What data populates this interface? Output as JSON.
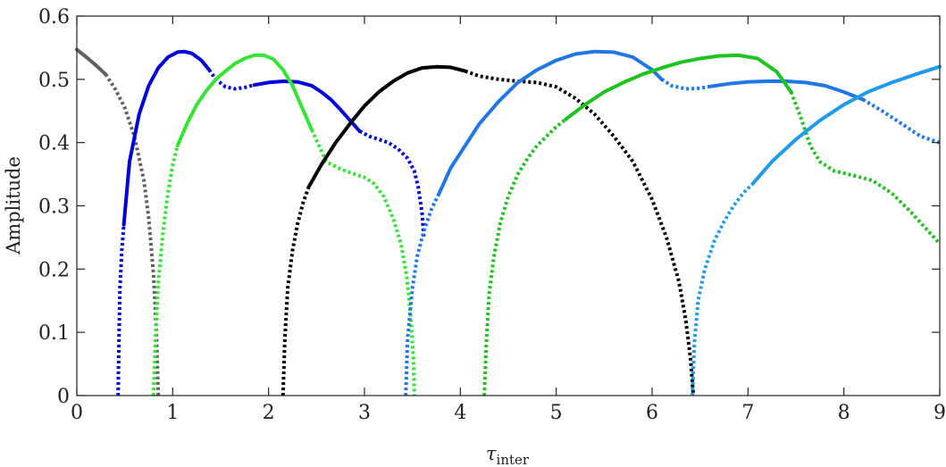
{
  "chart_data": {
    "type": "line",
    "xlabel": "τ",
    "xlabel_subscript": "inter",
    "ylabel": "Amplitude",
    "xlim": [
      0,
      9
    ],
    "ylim": [
      0,
      0.6
    ],
    "x_ticks": [
      0,
      1,
      2,
      3,
      4,
      5,
      6,
      7,
      8,
      9
    ],
    "y_ticks": [
      0,
      0.1,
      0.2,
      0.3,
      0.4,
      0.5,
      0.6
    ],
    "x_tick_labels": [
      "0",
      "1",
      "2",
      "3",
      "4",
      "5",
      "6",
      "7",
      "8",
      "9"
    ],
    "y_tick_labels": [
      "0",
      "0.1",
      "0.2",
      "0.3",
      "0.4",
      "0.5",
      "0.6"
    ],
    "grid": false,
    "legend": "none",
    "series": [
      {
        "color": "#606060",
        "segments": [
          {
            "style": "solid",
            "x": [
              0,
              0.1,
              0.2,
              0.3
            ],
            "y": [
              0.547,
              0.535,
              0.522,
              0.508
            ]
          },
          {
            "style": "dotted",
            "x": [
              0.3,
              0.4,
              0.5,
              0.6,
              0.7,
              0.75,
              0.8,
              0.83,
              0.85
            ],
            "y": [
              0.508,
              0.485,
              0.455,
              0.41,
              0.34,
              0.28,
              0.19,
              0.1,
              0.0
            ]
          }
        ]
      },
      {
        "color": "#0000dd",
        "segments": [
          {
            "style": "dotted",
            "x": [
              0.43,
              0.44,
              0.45,
              0.47,
              0.49
            ],
            "y": [
              0.0,
              0.09,
              0.17,
              0.23,
              0.27
            ]
          },
          {
            "style": "solid",
            "x": [
              0.49,
              0.55,
              0.65,
              0.75,
              0.85,
              0.95,
              1.05,
              1.12,
              1.2,
              1.3,
              1.38
            ],
            "y": [
              0.27,
              0.37,
              0.445,
              0.49,
              0.518,
              0.535,
              0.543,
              0.544,
              0.541,
              0.53,
              0.515
            ]
          },
          {
            "style": "dotted",
            "x": [
              1.38,
              1.45,
              1.55,
              1.65,
              1.75,
              1.85
            ],
            "y": [
              0.515,
              0.5,
              0.488,
              0.485,
              0.487,
              0.491
            ]
          },
          {
            "style": "solid",
            "x": [
              1.85,
              2.0,
              2.15,
              2.3,
              2.45,
              2.55,
              2.65,
              2.75,
              2.85,
              2.95
            ],
            "y": [
              0.491,
              0.495,
              0.497,
              0.496,
              0.49,
              0.48,
              0.468,
              0.452,
              0.435,
              0.418
            ]
          },
          {
            "style": "dotted",
            "x": [
              2.95,
              3.05,
              3.15,
              3.25,
              3.35,
              3.45,
              3.52,
              3.56,
              3.6,
              3.62
            ],
            "y": [
              0.418,
              0.41,
              0.405,
              0.4,
              0.39,
              0.375,
              0.355,
              0.33,
              0.29,
              0.25
            ]
          }
        ]
      },
      {
        "color": "#33e633",
        "segments": [
          {
            "style": "dotted",
            "x": [
              0.8,
              0.82,
              0.85,
              0.9,
              0.95,
              1.0,
              1.05
            ],
            "y": [
              0.0,
              0.09,
              0.18,
              0.26,
              0.32,
              0.365,
              0.395
            ]
          },
          {
            "style": "solid",
            "x": [
              1.05,
              1.15,
              1.25,
              1.35,
              1.45,
              1.55,
              1.65,
              1.75,
              1.85,
              1.95,
              2.05,
              2.15,
              2.25,
              2.35,
              2.45
            ],
            "y": [
              0.395,
              0.43,
              0.46,
              0.482,
              0.5,
              0.513,
              0.525,
              0.533,
              0.538,
              0.538,
              0.532,
              0.515,
              0.49,
              0.455,
              0.42
            ]
          },
          {
            "style": "dotted",
            "x": [
              2.45,
              2.6,
              2.75,
              2.9,
              3.0,
              3.1,
              3.2,
              3.3,
              3.38,
              3.44,
              3.48,
              3.51,
              3.52
            ],
            "y": [
              0.42,
              0.37,
              0.358,
              0.35,
              0.345,
              0.335,
              0.315,
              0.28,
              0.24,
              0.19,
              0.13,
              0.06,
              0.0
            ]
          }
        ]
      },
      {
        "color": "#000000",
        "segments": [
          {
            "style": "dotted",
            "x": [
              2.15,
              2.17,
              2.2,
              2.25,
              2.3,
              2.36,
              2.42
            ],
            "y": [
              0.0,
              0.09,
              0.17,
              0.23,
              0.27,
              0.305,
              0.33
            ]
          },
          {
            "style": "solid",
            "x": [
              2.42,
              2.55,
              2.7,
              2.85,
              3.0,
              3.15,
              3.3,
              3.45,
              3.6,
              3.75,
              3.9,
              4.05
            ],
            "y": [
              0.33,
              0.365,
              0.4,
              0.43,
              0.458,
              0.48,
              0.497,
              0.51,
              0.518,
              0.52,
              0.519,
              0.513
            ]
          },
          {
            "style": "dotted",
            "x": [
              4.05,
              4.2,
              4.4,
              4.6,
              4.8,
              5.0,
              5.2,
              5.4,
              5.6,
              5.8,
              6.0,
              6.15,
              6.28,
              6.35,
              6.4,
              6.43
            ],
            "y": [
              0.513,
              0.505,
              0.5,
              0.497,
              0.495,
              0.488,
              0.47,
              0.445,
              0.41,
              0.37,
              0.31,
              0.25,
              0.18,
              0.12,
              0.06,
              0.0
            ]
          }
        ]
      },
      {
        "color": "#1f77e6",
        "segments": [
          {
            "style": "dotted",
            "x": [
              3.43,
              3.45,
              3.5,
              3.55,
              3.62,
              3.7,
              3.78
            ],
            "y": [
              0.0,
              0.09,
              0.17,
              0.22,
              0.26,
              0.295,
              0.32
            ]
          },
          {
            "style": "solid",
            "x": [
              3.78,
              3.9,
              4.05,
              4.2,
              4.4,
              4.6,
              4.8,
              5.0,
              5.2,
              5.4,
              5.6,
              5.8,
              6.0,
              6.1
            ],
            "y": [
              0.32,
              0.36,
              0.395,
              0.43,
              0.465,
              0.495,
              0.515,
              0.53,
              0.54,
              0.544,
              0.543,
              0.535,
              0.515,
              0.5
            ]
          },
          {
            "style": "dotted",
            "x": [
              6.1,
              6.2,
              6.35,
              6.5,
              6.62
            ],
            "y": [
              0.5,
              0.49,
              0.485,
              0.486,
              0.489
            ]
          },
          {
            "style": "solid",
            "x": [
              6.62,
              6.8,
              7.0,
              7.2,
              7.4,
              7.6,
              7.8,
              8.0,
              8.2
            ],
            "y": [
              0.489,
              0.493,
              0.496,
              0.497,
              0.497,
              0.495,
              0.49,
              0.48,
              0.468
            ]
          },
          {
            "style": "dotted",
            "x": [
              8.2,
              8.4,
              8.6,
              8.8,
              9.0
            ],
            "y": [
              0.468,
              0.45,
              0.43,
              0.41,
              0.4
            ]
          }
        ]
      },
      {
        "color": "#1ec41e",
        "segments": [
          {
            "style": "dotted",
            "x": [
              4.25,
              4.27,
              4.3,
              4.35,
              4.42,
              4.5,
              4.6,
              4.7,
              4.8,
              4.9,
              5.0,
              5.1
            ],
            "y": [
              0.0,
              0.08,
              0.16,
              0.22,
              0.275,
              0.315,
              0.35,
              0.375,
              0.395,
              0.41,
              0.425,
              0.437
            ]
          },
          {
            "style": "solid",
            "x": [
              5.1,
              5.3,
              5.5,
              5.7,
              5.9,
              6.1,
              6.3,
              6.5,
              6.7,
              6.9,
              7.1,
              7.3,
              7.45
            ],
            "y": [
              0.437,
              0.46,
              0.48,
              0.495,
              0.508,
              0.518,
              0.527,
              0.533,
              0.537,
              0.538,
              0.533,
              0.512,
              0.48
            ]
          },
          {
            "style": "dotted",
            "x": [
              7.45,
              7.55,
              7.65,
              7.75,
              7.9,
              8.1,
              8.3,
              8.5,
              8.7,
              8.85,
              9.0
            ],
            "y": [
              0.48,
              0.44,
              0.395,
              0.37,
              0.355,
              0.348,
              0.34,
              0.32,
              0.29,
              0.265,
              0.24
            ]
          }
        ]
      },
      {
        "color": "#1f9bec",
        "segments": [
          {
            "style": "dotted",
            "x": [
              6.42,
              6.44,
              6.48,
              6.55,
              6.65,
              6.75,
              6.85,
              6.95,
              7.05
            ],
            "y": [
              0.0,
              0.08,
              0.15,
              0.2,
              0.245,
              0.275,
              0.3,
              0.32,
              0.335
            ]
          },
          {
            "style": "solid",
            "x": [
              7.05,
              7.25,
              7.5,
              7.75,
              8.0,
              8.25,
              8.5,
              8.75,
              9.0
            ],
            "y": [
              0.335,
              0.37,
              0.405,
              0.435,
              0.46,
              0.48,
              0.495,
              0.508,
              0.52
            ]
          }
        ]
      }
    ]
  }
}
